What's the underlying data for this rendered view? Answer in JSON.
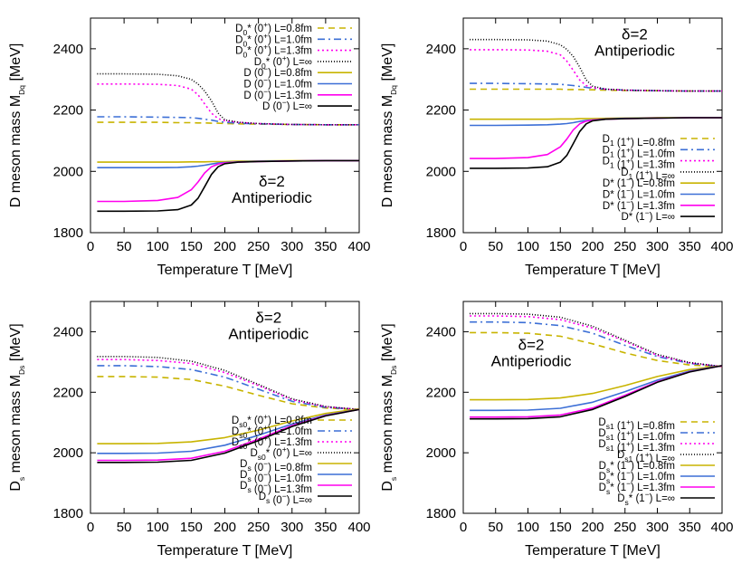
{
  "colors": {
    "yellow": "#c8b400",
    "blue": "#3c6fd6",
    "magenta": "#ff00ee",
    "black": "#000000"
  },
  "chart_data": [
    {
      "type": "line",
      "xlabel": "Temperature T [MeV]",
      "ylabel": {
        "main": "D meson mass M",
        "sub": "Dq",
        "unit": " [MeV]"
      },
      "xlim": [
        0,
        400
      ],
      "ylim": [
        1800,
        2500
      ],
      "xticks": [
        0,
        50,
        100,
        150,
        200,
        250,
        300,
        350,
        400
      ],
      "yticks": [
        1800,
        2000,
        2200,
        2400
      ],
      "annotation": {
        "delta": "δ=2",
        "bc": "Antiperiodic",
        "position": "bottom-right"
      },
      "legend_position": "top-right",
      "x": [
        10,
        50,
        100,
        130,
        150,
        160,
        170,
        180,
        190,
        200,
        220,
        250,
        300,
        350,
        400
      ],
      "series": [
        {
          "meson": "D",
          "sub": "0",
          "star": "*",
          "jp": "0",
          "parity": "+",
          "L": "L=0.8fm",
          "color": "yellow",
          "dash": "dashed",
          "values": [
            2160,
            2160,
            2160,
            2159,
            2159,
            2158,
            2158,
            2157,
            2157,
            2156,
            2155,
            2154,
            2153,
            2152,
            2152
          ]
        },
        {
          "meson": "D",
          "sub": "0",
          "star": "*",
          "jp": "0",
          "parity": "+",
          "L": "L=1.0fm",
          "color": "blue",
          "dash": "dashdot",
          "values": [
            2178,
            2178,
            2177,
            2176,
            2175,
            2173,
            2170,
            2167,
            2163,
            2160,
            2157,
            2155,
            2153,
            2152,
            2152
          ]
        },
        {
          "meson": "D",
          "sub": "0",
          "star": "*",
          "jp": "0",
          "parity": "+",
          "L": "L=1.3fm",
          "color": "magenta",
          "dash": "dotted",
          "values": [
            2285,
            2285,
            2284,
            2280,
            2268,
            2250,
            2220,
            2190,
            2172,
            2165,
            2160,
            2156,
            2153,
            2152,
            2152
          ]
        },
        {
          "meson": "D",
          "sub": "0",
          "star": "*",
          "jp": "0",
          "parity": "+",
          "L": "L=∞",
          "color": "black",
          "dash": "finedot",
          "values": [
            2318,
            2318,
            2317,
            2312,
            2300,
            2285,
            2262,
            2230,
            2190,
            2168,
            2160,
            2156,
            2153,
            2152,
            2152
          ]
        },
        {
          "meson": "D",
          "sub": "",
          "star": "",
          "jp": "0",
          "parity": "−",
          "L": "L=0.8fm",
          "color": "yellow",
          "dash": "solid",
          "values": [
            2030,
            2030,
            2030,
            2030,
            2031,
            2031,
            2031,
            2032,
            2032,
            2032,
            2033,
            2034,
            2035,
            2035,
            2035
          ]
        },
        {
          "meson": "D",
          "sub": "",
          "star": "",
          "jp": "0",
          "parity": "−",
          "L": "L=1.0fm",
          "color": "blue",
          "dash": "solid",
          "values": [
            2012,
            2012,
            2012,
            2013,
            2015,
            2017,
            2020,
            2024,
            2027,
            2029,
            2031,
            2033,
            2034,
            2035,
            2035
          ]
        },
        {
          "meson": "D",
          "sub": "",
          "star": "",
          "jp": "0",
          "parity": "−",
          "L": "L=1.3fm",
          "color": "magenta",
          "dash": "solid",
          "values": [
            1902,
            1902,
            1905,
            1915,
            1940,
            1965,
            1995,
            2015,
            2024,
            2027,
            2030,
            2032,
            2034,
            2035,
            2035
          ]
        },
        {
          "meson": "D",
          "sub": "",
          "star": "",
          "jp": "0",
          "parity": "−",
          "L": "L=∞",
          "color": "black",
          "dash": "solid",
          "values": [
            1870,
            1870,
            1871,
            1875,
            1890,
            1912,
            1950,
            1990,
            2015,
            2025,
            2030,
            2032,
            2034,
            2035,
            2035
          ]
        }
      ]
    },
    {
      "type": "line",
      "xlabel": "Temperature T [MeV]",
      "ylabel": {
        "main": "D meson mass M",
        "sub": "Dq",
        "unit": " [MeV]"
      },
      "xlim": [
        0,
        400
      ],
      "ylim": [
        1800,
        2500
      ],
      "xticks": [
        0,
        50,
        100,
        150,
        200,
        250,
        300,
        350,
        400
      ],
      "yticks": [
        1800,
        2000,
        2200,
        2400
      ],
      "annotation": {
        "delta": "δ=2",
        "bc": "Antiperiodic",
        "position": "top-right"
      },
      "legend_position": "bottom-right",
      "x": [
        10,
        50,
        100,
        130,
        150,
        160,
        170,
        180,
        190,
        200,
        220,
        250,
        300,
        350,
        400
      ],
      "series": [
        {
          "meson": "D",
          "sub": "1",
          "star": "",
          "jp": "1",
          "parity": "+",
          "L": "L=0.8fm",
          "color": "yellow",
          "dash": "dashed",
          "values": [
            2268,
            2268,
            2268,
            2268,
            2268,
            2267,
            2267,
            2267,
            2266,
            2266,
            2265,
            2264,
            2263,
            2262,
            2262
          ]
        },
        {
          "meson": "D",
          "sub": "1",
          "star": "",
          "jp": "1",
          "parity": "+",
          "L": "L=1.0fm",
          "color": "blue",
          "dash": "dashdot",
          "values": [
            2287,
            2287,
            2286,
            2285,
            2284,
            2282,
            2280,
            2277,
            2274,
            2271,
            2268,
            2265,
            2263,
            2262,
            2262
          ]
        },
        {
          "meson": "D",
          "sub": "1",
          "star": "",
          "jp": "1",
          "parity": "+",
          "L": "L=1.3fm",
          "color": "magenta",
          "dash": "dotted",
          "values": [
            2397,
            2397,
            2396,
            2392,
            2380,
            2360,
            2330,
            2298,
            2280,
            2273,
            2268,
            2265,
            2263,
            2262,
            2262
          ]
        },
        {
          "meson": "D",
          "sub": "1",
          "star": "",
          "jp": "1",
          "parity": "+",
          "L": "L=∞",
          "color": "black",
          "dash": "finedot",
          "values": [
            2430,
            2430,
            2429,
            2425,
            2413,
            2398,
            2375,
            2340,
            2298,
            2278,
            2268,
            2265,
            2263,
            2262,
            2262
          ]
        },
        {
          "meson": "D",
          "sub": "",
          "star": "*",
          "jp": "1",
          "parity": "−",
          "L": "L=0.8fm",
          "color": "yellow",
          "dash": "solid",
          "values": [
            2170,
            2170,
            2170,
            2170,
            2171,
            2171,
            2171,
            2172,
            2172,
            2172,
            2173,
            2174,
            2175,
            2175,
            2175
          ]
        },
        {
          "meson": "D",
          "sub": "",
          "star": "*",
          "jp": "1",
          "parity": "−",
          "L": "L=1.0fm",
          "color": "blue",
          "dash": "solid",
          "values": [
            2150,
            2150,
            2151,
            2152,
            2154,
            2156,
            2159,
            2163,
            2166,
            2168,
            2171,
            2173,
            2174,
            2175,
            2175
          ]
        },
        {
          "meson": "D",
          "sub": "",
          "star": "*",
          "jp": "1",
          "parity": "−",
          "L": "L=1.3fm",
          "color": "magenta",
          "dash": "solid",
          "values": [
            2042,
            2042,
            2045,
            2055,
            2080,
            2105,
            2135,
            2155,
            2164,
            2167,
            2170,
            2172,
            2174,
            2175,
            2175
          ]
        },
        {
          "meson": "D",
          "sub": "",
          "star": "*",
          "jp": "1",
          "parity": "−",
          "L": "L=∞",
          "color": "black",
          "dash": "solid",
          "values": [
            2010,
            2010,
            2011,
            2015,
            2030,
            2052,
            2090,
            2130,
            2155,
            2165,
            2170,
            2172,
            2174,
            2175,
            2175
          ]
        }
      ]
    },
    {
      "type": "line",
      "xlabel": "Temperature T [MeV]",
      "ylabel": {
        "main": "D",
        "mainsub": "s",
        "main2": " meson mass M",
        "sub": "Ds",
        "unit": " [MeV]"
      },
      "xlim": [
        0,
        400
      ],
      "ylim": [
        1800,
        2500
      ],
      "xticks": [
        0,
        50,
        100,
        150,
        200,
        250,
        300,
        350,
        400
      ],
      "yticks": [
        1800,
        2000,
        2200,
        2400
      ],
      "annotation": {
        "delta": "δ=2",
        "bc": "Antiperiodic",
        "position": "top-right"
      },
      "legend_position": "bottom-right",
      "x": [
        10,
        50,
        100,
        150,
        200,
        250,
        300,
        350,
        400
      ],
      "series": [
        {
          "meson": "D",
          "sub": "s0",
          "star": "*",
          "jp": "0",
          "parity": "+",
          "L": "L=0.8fm",
          "color": "yellow",
          "dash": "dashed",
          "values": [
            2252,
            2252,
            2250,
            2242,
            2220,
            2190,
            2162,
            2148,
            2142
          ]
        },
        {
          "meson": "D",
          "sub": "s0",
          "star": "*",
          "jp": "0",
          "parity": "+",
          "L": "L=1.0fm",
          "color": "blue",
          "dash": "dashdot",
          "values": [
            2288,
            2288,
            2285,
            2275,
            2250,
            2210,
            2170,
            2150,
            2143
          ]
        },
        {
          "meson": "D",
          "sub": "s0",
          "star": "*",
          "jp": "0",
          "parity": "+",
          "L": "L=1.3fm",
          "color": "magenta",
          "dash": "dotted",
          "values": [
            2308,
            2308,
            2305,
            2295,
            2265,
            2222,
            2175,
            2152,
            2143
          ]
        },
        {
          "meson": "D",
          "sub": "s0",
          "star": "*",
          "jp": "0",
          "parity": "+",
          "L": "L=∞",
          "color": "black",
          "dash": "finedot",
          "values": [
            2318,
            2318,
            2315,
            2303,
            2272,
            2226,
            2178,
            2153,
            2143
          ]
        },
        {
          "meson": "D",
          "sub": "s",
          "star": "",
          "jp": "0",
          "parity": "−",
          "L": "L=0.8fm",
          "color": "yellow",
          "dash": "solid",
          "values": [
            2030,
            2030,
            2031,
            2036,
            2050,
            2075,
            2105,
            2130,
            2145
          ]
        },
        {
          "meson": "D",
          "sub": "s",
          "star": "",
          "jp": "0",
          "parity": "−",
          "L": "L=1.0fm",
          "color": "blue",
          "dash": "solid",
          "values": [
            1998,
            1998,
            1999,
            2005,
            2025,
            2058,
            2095,
            2125,
            2143
          ]
        },
        {
          "meson": "D",
          "sub": "s",
          "star": "",
          "jp": "0",
          "parity": "−",
          "L": "L=1.3fm",
          "color": "magenta",
          "dash": "solid",
          "values": [
            1975,
            1975,
            1976,
            1982,
            2005,
            2045,
            2090,
            2123,
            2143
          ]
        },
        {
          "meson": "D",
          "sub": "s",
          "star": "",
          "jp": "0",
          "parity": "−",
          "L": "L=∞",
          "color": "black",
          "dash": "solid",
          "values": [
            1968,
            1968,
            1969,
            1975,
            1999,
            2040,
            2087,
            2122,
            2143
          ]
        }
      ]
    },
    {
      "type": "line",
      "xlabel": "Temperature T [MeV]",
      "ylabel": {
        "main": "D",
        "mainsub": "s",
        "main2": " meson mass M",
        "sub": "Ds",
        "unit": " [MeV]"
      },
      "xlim": [
        0,
        400
      ],
      "ylim": [
        1800,
        2500
      ],
      "xticks": [
        0,
        50,
        100,
        150,
        200,
        250,
        300,
        350,
        400
      ],
      "yticks": [
        1800,
        2000,
        2200,
        2400
      ],
      "annotation": {
        "delta": "δ=2",
        "bc": "Antiperiodic",
        "position": "top-left"
      },
      "legend_position": "bottom-right",
      "x": [
        10,
        50,
        100,
        150,
        200,
        250,
        300,
        350,
        400
      ],
      "series": [
        {
          "meson": "D",
          "sub": "s1",
          "star": "",
          "jp": "1",
          "parity": "+",
          "L": "L=0.8fm",
          "color": "yellow",
          "dash": "dashed",
          "values": [
            2397,
            2397,
            2395,
            2385,
            2360,
            2330,
            2305,
            2290,
            2285
          ]
        },
        {
          "meson": "D",
          "sub": "s1",
          "star": "",
          "jp": "1",
          "parity": "+",
          "L": "L=1.0fm",
          "color": "blue",
          "dash": "dashdot",
          "values": [
            2432,
            2432,
            2430,
            2420,
            2395,
            2355,
            2318,
            2295,
            2285
          ]
        },
        {
          "meson": "D",
          "sub": "s1",
          "star": "",
          "jp": "1",
          "parity": "+",
          "L": "L=1.3fm",
          "color": "magenta",
          "dash": "dotted",
          "values": [
            2452,
            2452,
            2450,
            2440,
            2412,
            2368,
            2322,
            2297,
            2285
          ]
        },
        {
          "meson": "D",
          "sub": "s1",
          "star": "",
          "jp": "1",
          "parity": "+",
          "L": "L=∞",
          "color": "black",
          "dash": "finedot",
          "values": [
            2460,
            2460,
            2458,
            2448,
            2418,
            2372,
            2325,
            2298,
            2285
          ]
        },
        {
          "meson": "D",
          "sub": "s",
          "star": "*",
          "jp": "1",
          "parity": "−",
          "L": "L=0.8fm",
          "color": "yellow",
          "dash": "solid",
          "values": [
            2175,
            2175,
            2176,
            2181,
            2196,
            2222,
            2252,
            2275,
            2288
          ]
        },
        {
          "meson": "D",
          "sub": "s",
          "star": "*",
          "jp": "1",
          "parity": "−",
          "L": "L=1.0fm",
          "color": "blue",
          "dash": "solid",
          "values": [
            2140,
            2140,
            2141,
            2147,
            2167,
            2202,
            2240,
            2270,
            2288
          ]
        },
        {
          "meson": "D",
          "sub": "s",
          "star": "*",
          "jp": "1",
          "parity": "−",
          "L": "L=1.3fm",
          "color": "magenta",
          "dash": "solid",
          "values": [
            2118,
            2118,
            2119,
            2125,
            2148,
            2190,
            2235,
            2268,
            2288
          ]
        },
        {
          "meson": "D",
          "sub": "s",
          "star": "*",
          "jp": "1",
          "parity": "−",
          "L": "L=∞",
          "color": "black",
          "dash": "solid",
          "values": [
            2112,
            2112,
            2113,
            2119,
            2143,
            2186,
            2233,
            2267,
            2288
          ]
        }
      ]
    }
  ]
}
